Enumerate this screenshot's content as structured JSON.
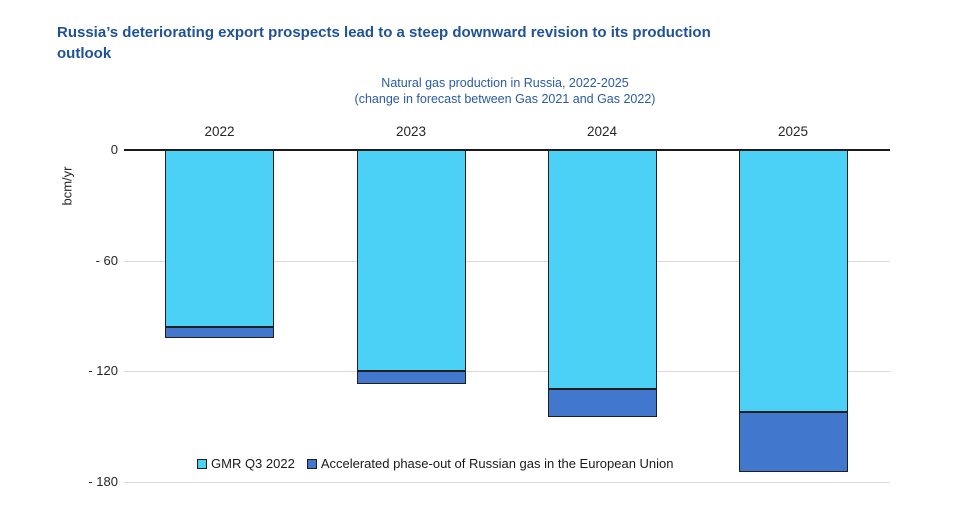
{
  "title": {
    "lines": [
      "Russia’s deteriorating export prospects lead to a steep downward revision to its production",
      "outlook"
    ],
    "color": "#1f5296"
  },
  "subtitle": {
    "line1": "Natural gas production in Russia, 2022-2025",
    "line2": "(change in forecast between Gas 2021 and Gas 2022)",
    "color": "#2a5aa6"
  },
  "chart_data": {
    "type": "bar",
    "stacked": true,
    "orientation": "vertical-negative",
    "categories": [
      "2022",
      "2023",
      "2024",
      "2025"
    ],
    "series": [
      {
        "name": "GMR Q3 2022",
        "color": "#4ad1f5",
        "values": [
          -96,
          -120,
          -130,
          -142
        ]
      },
      {
        "name": "Accelerated phase-out of Russian gas in the European Union",
        "color": "#4277ce",
        "values": [
          -6,
          -7,
          -15,
          -33
        ]
      }
    ],
    "totals": [
      -102,
      -127,
      -145,
      -175
    ],
    "ylabel": "bcm/yr",
    "ylim": [
      -180,
      0
    ],
    "yticks": [
      0,
      -60,
      -120,
      -180
    ],
    "ytick_labels": [
      "0",
      "- 60",
      "- 120",
      "- 180"
    ],
    "grid": true,
    "zero_line_color": "#1a1a1a",
    "gridline_color": "#d9d9d9",
    "legend_position": "bottom"
  }
}
